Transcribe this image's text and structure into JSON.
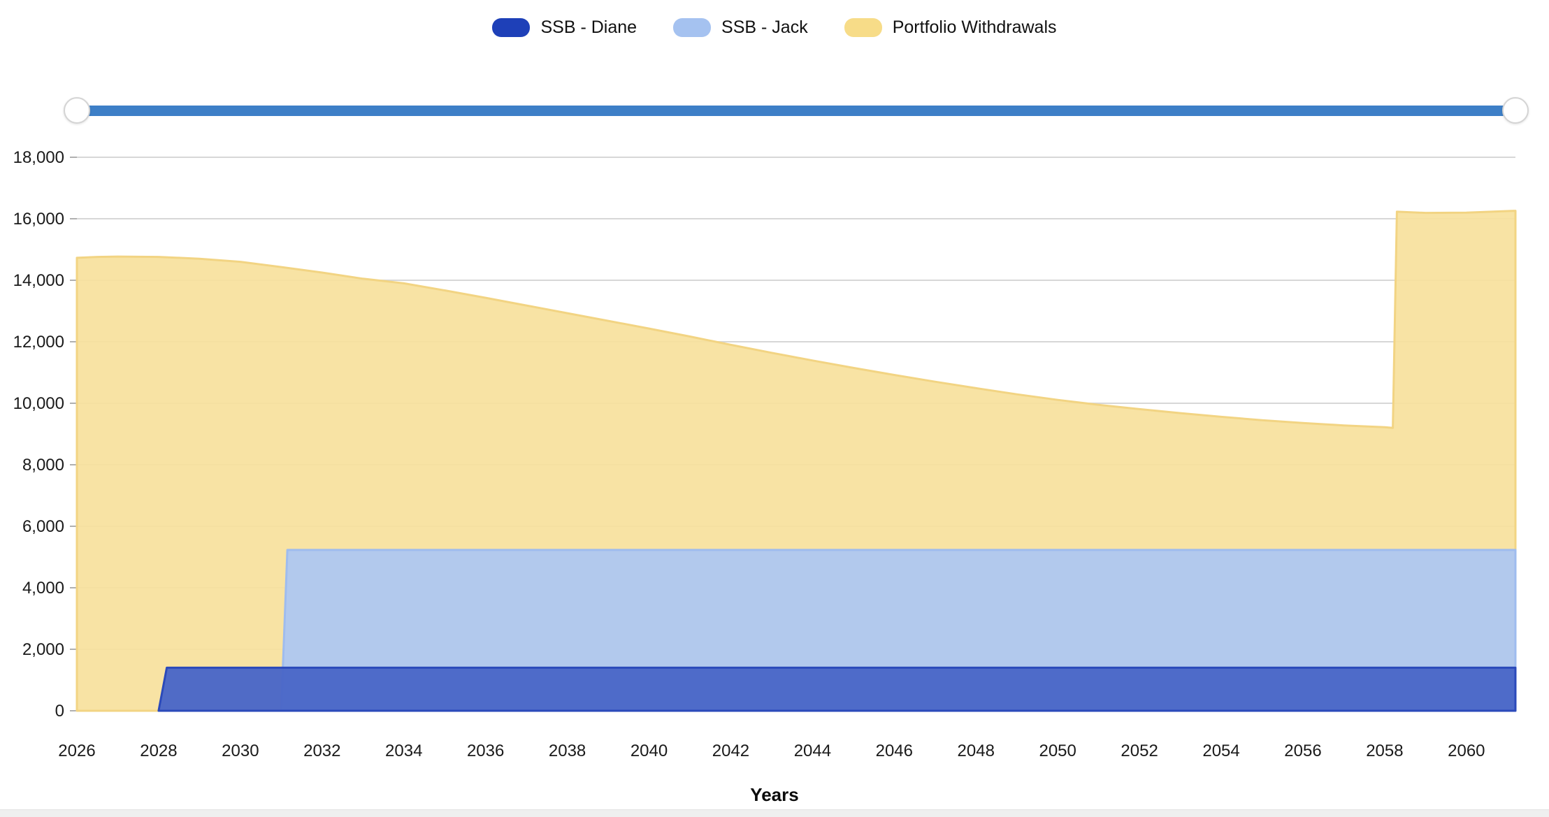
{
  "legend": {
    "items": [
      {
        "label": "SSB - Diane",
        "color": "#1e40b8"
      },
      {
        "label": "SSB - Jack",
        "color": "#a5c2f0"
      },
      {
        "label": "Portfolio Withdrawals",
        "color": "#f7dc88"
      }
    ]
  },
  "slider": {
    "track_color": "#3d7fc7",
    "handle_color": "#ffffff"
  },
  "chart_data": {
    "type": "area",
    "title": "",
    "xlabel": "Years",
    "ylabel": "",
    "xlim": [
      2026,
      2061.2
    ],
    "ylim": [
      0,
      18000
    ],
    "grid": true,
    "legend_position": "top",
    "grid_color": "#d7d7d7",
    "tick_color": "#b0b0b0",
    "y_ticks": [
      {
        "v": 0,
        "label": "0"
      },
      {
        "v": 2000,
        "label": "2,000"
      },
      {
        "v": 4000,
        "label": "4,000"
      },
      {
        "v": 6000,
        "label": "6,000"
      },
      {
        "v": 8000,
        "label": "8,000"
      },
      {
        "v": 10000,
        "label": "10,000"
      },
      {
        "v": 12000,
        "label": "12,000"
      },
      {
        "v": 14000,
        "label": "14,000"
      },
      {
        "v": 16000,
        "label": "16,000"
      },
      {
        "v": 18000,
        "label": "18,000"
      }
    ],
    "x_ticks": [
      {
        "v": 2026,
        "label": "2026"
      },
      {
        "v": 2028,
        "label": "2028"
      },
      {
        "v": 2030,
        "label": "2030"
      },
      {
        "v": 2032,
        "label": "2032"
      },
      {
        "v": 2034,
        "label": "2034"
      },
      {
        "v": 2036,
        "label": "2036"
      },
      {
        "v": 2038,
        "label": "2038"
      },
      {
        "v": 2040,
        "label": "2040"
      },
      {
        "v": 2042,
        "label": "2042"
      },
      {
        "v": 2044,
        "label": "2044"
      },
      {
        "v": 2046,
        "label": "2046"
      },
      {
        "v": 2048,
        "label": "2048"
      },
      {
        "v": 2050,
        "label": "2050"
      },
      {
        "v": 2052,
        "label": "2052"
      },
      {
        "v": 2054,
        "label": "2054"
      },
      {
        "v": 2056,
        "label": "2056"
      },
      {
        "v": 2058,
        "label": "2058"
      },
      {
        "v": 2060,
        "label": "2060"
      }
    ],
    "series": [
      {
        "name": "Portfolio Withdrawals",
        "fill": "#f8e19d",
        "stroke": "#f2d483",
        "fill_opacity": 0.93,
        "points": [
          [
            2026,
            14730
          ],
          [
            2026.5,
            14760
          ],
          [
            2027,
            14770
          ],
          [
            2028,
            14760
          ],
          [
            2029,
            14700
          ],
          [
            2030,
            14600
          ],
          [
            2031,
            14430
          ],
          [
            2032,
            14250
          ],
          [
            2033,
            14050
          ],
          [
            2034,
            13900
          ],
          [
            2035,
            13670
          ],
          [
            2036,
            13430
          ],
          [
            2037,
            13180
          ],
          [
            2038,
            12930
          ],
          [
            2039,
            12680
          ],
          [
            2040,
            12430
          ],
          [
            2041,
            12170
          ],
          [
            2042,
            11900
          ],
          [
            2043,
            11640
          ],
          [
            2044,
            11390
          ],
          [
            2045,
            11150
          ],
          [
            2046,
            10920
          ],
          [
            2047,
            10700
          ],
          [
            2048,
            10490
          ],
          [
            2049,
            10290
          ],
          [
            2050,
            10110
          ],
          [
            2051,
            9950
          ],
          [
            2052,
            9810
          ],
          [
            2053,
            9680
          ],
          [
            2054,
            9560
          ],
          [
            2055,
            9450
          ],
          [
            2056,
            9360
          ],
          [
            2057,
            9280
          ],
          [
            2058,
            9220
          ],
          [
            2058.2,
            9200
          ],
          [
            2058.3,
            16230
          ],
          [
            2059,
            16190
          ],
          [
            2060,
            16200
          ],
          [
            2061.2,
            16260
          ]
        ]
      },
      {
        "name": "SSB - Jack",
        "fill": "#aec7f1",
        "stroke": "#9fbcee",
        "fill_opacity": 0.95,
        "points": [
          [
            2031,
            0
          ],
          [
            2031.15,
            5230
          ],
          [
            2040,
            5230
          ],
          [
            2050,
            5230
          ],
          [
            2061.2,
            5230
          ]
        ]
      },
      {
        "name": "SSB - Diane",
        "fill": "#4a67c7",
        "stroke": "#2b4aba",
        "fill_opacity": 0.97,
        "points": [
          [
            2028,
            0
          ],
          [
            2028.2,
            1400
          ],
          [
            2040,
            1400
          ],
          [
            2050,
            1400
          ],
          [
            2061.2,
            1400
          ]
        ]
      }
    ]
  },
  "x_axis_title": "Years"
}
